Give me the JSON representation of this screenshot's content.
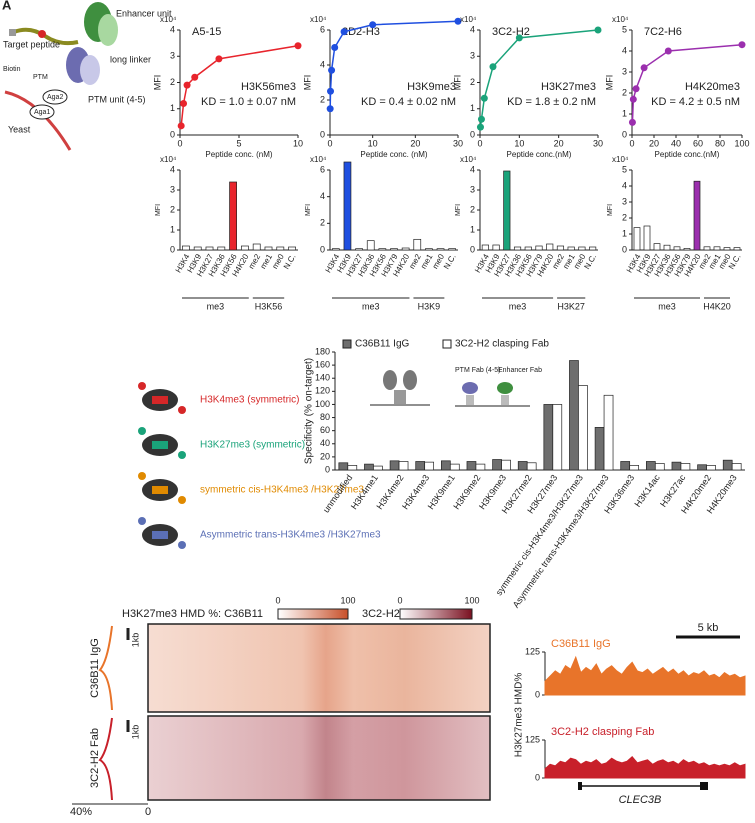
{
  "schematic": {
    "panel_label": "A",
    "target_peptide": "Target peptide",
    "biotin": "Biotin",
    "ptm": "PTM",
    "aga2": "Aga2",
    "aga1": "Aga1",
    "yeast": "Yeast",
    "enhancer": "Enhancer unit",
    "linker": "long linker",
    "ptm_unit": "PTM unit (4-5)",
    "inset_ptm": "PTM Fab (4-5)",
    "inset_enh": "Enhancer Fab"
  },
  "nucleosome_legend": [
    {
      "label": "H3K4me3 (symmetric)",
      "color": "#d62728"
    },
    {
      "label": "H3K27me3 (symmetric)",
      "color": "#1aa37a"
    },
    {
      "label": "symmetric cis-H3K4me3 /H3K27me3",
      "color": "#e08a00"
    },
    {
      "label": "Asymmetric trans-H3K4me3 /H3K27me3",
      "color": "#5b6fb5"
    }
  ],
  "chart_data": [
    {
      "type": "scatter",
      "title": "A5-15",
      "annotation": "H3K56me3",
      "kd": "KD = 1.0 ± 0.07 nM",
      "xlabel": "Peptide conc. (nM)",
      "ylabel": "MFI",
      "multiplier": "x10⁴",
      "color": "#e8242c",
      "x": [
        0.1,
        0.3,
        0.6,
        1.25,
        3.3,
        10
      ],
      "values": [
        0.35,
        1.2,
        1.9,
        2.2,
        2.9,
        3.4
      ],
      "xlim": [
        0,
        10
      ],
      "xticks": [
        0,
        5,
        10
      ],
      "ylim": [
        0,
        4
      ],
      "yticks": [
        0,
        1,
        2,
        3,
        4
      ]
    },
    {
      "type": "scatter",
      "title": "2D2-H3",
      "annotation": "H3K9me3",
      "kd": "KD = 0.4 ± 0.02 nM",
      "xlabel": "Peptide conc. (nM)",
      "ylabel": "MFI",
      "multiplier": "x10⁴",
      "color": "#1f4fe0",
      "x": [
        0.04,
        0.12,
        0.37,
        1.1,
        3.3,
        10,
        30
      ],
      "values": [
        1.5,
        2.5,
        3.7,
        5,
        5.9,
        6.3,
        6.5
      ],
      "xlim": [
        0,
        30
      ],
      "xticks": [
        0,
        10,
        20,
        30
      ],
      "ylim": [
        0,
        6
      ],
      "yticks": [
        0,
        2,
        4,
        6
      ]
    },
    {
      "type": "scatter",
      "title": "3C2-H2",
      "annotation": "H3K27me3",
      "kd": "KD = 1.8 ± 0.2 nM",
      "xlabel": "Peptide conc.(nM)",
      "ylabel": "MFI",
      "multiplier": "x10⁴",
      "color": "#1aa37a",
      "x": [
        0.12,
        0.37,
        1.1,
        3.3,
        10,
        30
      ],
      "values": [
        0.3,
        0.6,
        1.4,
        2.6,
        3.7,
        4.0
      ],
      "xlim": [
        0,
        30
      ],
      "xticks": [
        0,
        10,
        20,
        30
      ],
      "ylim": [
        0,
        4
      ],
      "yticks": [
        0,
        1,
        2,
        3,
        4
      ]
    },
    {
      "type": "scatter",
      "title": "7C2-H6",
      "annotation": "H4K20me3",
      "kd": "KD = 4.2 ± 0.5 nM",
      "xlabel": "Peptide conc.(nM)",
      "ylabel": "MFI",
      "multiplier": "x10⁴",
      "color": "#9b2fae",
      "x": [
        0.4,
        1.2,
        3.7,
        11,
        33,
        100
      ],
      "values": [
        0.6,
        1.7,
        2.2,
        3.2,
        4.0,
        4.3
      ],
      "xlim": [
        0,
        100
      ],
      "xticks": [
        0,
        20,
        40,
        60,
        80,
        100
      ],
      "ylim": [
        0,
        5
      ],
      "yticks": [
        0,
        1,
        2,
        3,
        4,
        5
      ]
    },
    {
      "type": "bar",
      "ylabel": "MFI",
      "multiplier": "x10⁴",
      "groups": [
        "me3",
        "H3K56"
      ],
      "categories": [
        "H3K4",
        "H3K9",
        "H3K27",
        "H3K36",
        "H3K56",
        "H4K20",
        "me2",
        "me1",
        "me0",
        "N.C."
      ],
      "values": [
        0.2,
        0.15,
        0.15,
        0.15,
        3.4,
        0.2,
        0.3,
        0.15,
        0.15,
        0.15
      ],
      "colors": [
        "#fff",
        "#fff",
        "#fff",
        "#fff",
        "#e8242c",
        "#fff",
        "#fff",
        "#fff",
        "#fff",
        "#fff"
      ],
      "ylim": [
        0,
        4
      ],
      "yticks": [
        0,
        1,
        2,
        3,
        4
      ]
    },
    {
      "type": "bar",
      "ylabel": "MFI",
      "multiplier": "x10⁴",
      "groups": [
        "me3",
        "H3K9"
      ],
      "categories": [
        "H3K4",
        "H3K9",
        "H3K27",
        "H3K36",
        "H3K56",
        "H3K79",
        "H4K20",
        "me2",
        "me1",
        "me0",
        "N.C."
      ],
      "values": [
        0.1,
        6.6,
        0.1,
        0.7,
        0.1,
        0.1,
        0.15,
        0.8,
        0.1,
        0.1,
        0.1
      ],
      "colors": [
        "#fff",
        "#1f4fe0",
        "#fff",
        "#fff",
        "#fff",
        "#fff",
        "#fff",
        "#fff",
        "#fff",
        "#fff",
        "#fff"
      ],
      "ylim": [
        0,
        6
      ],
      "yticks": [
        0,
        2,
        4,
        6
      ]
    },
    {
      "type": "bar",
      "ylabel": "MFI",
      "multiplier": "x10⁴",
      "groups": [
        "me3",
        "H3K27"
      ],
      "categories": [
        "H3K4",
        "H3K9",
        "H3K27",
        "H3K36",
        "H3K56",
        "H3K79",
        "H4K20",
        "me2",
        "me1",
        "me0",
        "N.C."
      ],
      "values": [
        0.25,
        0.25,
        3.95,
        0.15,
        0.15,
        0.2,
        0.3,
        0.2,
        0.15,
        0.15,
        0.15
      ],
      "colors": [
        "#fff",
        "#fff",
        "#1aa37a",
        "#fff",
        "#fff",
        "#fff",
        "#fff",
        "#fff",
        "#fff",
        "#fff",
        "#fff"
      ],
      "ylim": [
        0,
        4
      ],
      "yticks": [
        0,
        1,
        2,
        3,
        4
      ]
    },
    {
      "type": "bar",
      "ylabel": "MFI",
      "multiplier": "x10⁴",
      "groups": [
        "me3",
        "H4K20"
      ],
      "categories": [
        "H3K4",
        "H3K9",
        "H3K27",
        "H3K36",
        "H3K56",
        "H3K79",
        "H4K20",
        "me2",
        "me1",
        "me0",
        "N.C."
      ],
      "values": [
        1.4,
        1.5,
        0.4,
        0.3,
        0.2,
        0.1,
        4.3,
        0.2,
        0.2,
        0.15,
        0.15
      ],
      "colors": [
        "#fff",
        "#fff",
        "#fff",
        "#fff",
        "#fff",
        "#fff",
        "#9b2fae",
        "#fff",
        "#fff",
        "#fff",
        "#fff"
      ],
      "ylim": [
        0,
        5
      ],
      "yticks": [
        0,
        1,
        2,
        3,
        4,
        5
      ]
    },
    {
      "type": "grouped_bar",
      "ylabel": "Specificity (% on-target)",
      "categories": [
        "unmodified",
        "H3K4me1",
        "H3K4me2",
        "H3K4me3",
        "H3K9me1",
        "H3K9me2",
        "H3K9me3",
        "H3K27me2",
        "H3K27me3",
        "symmetric cis-H3K4me3/H3K27me3",
        "Asymmetric trans-H3K4me3/H3K27me3",
        "H3K36me3",
        "H3K14ac",
        "H3K27ac",
        "H4K20me2",
        "H4K20me3"
      ],
      "series": [
        {
          "name": "C36B11 IgG",
          "color": "#6e6e6e",
          "values": [
            11,
            9,
            14,
            13,
            14,
            13,
            16,
            13,
            100,
            167,
            65,
            13,
            13,
            12,
            8,
            15
          ]
        },
        {
          "name": "3C2-H2 clasping Fab",
          "color": "#ffffff",
          "values": [
            7,
            6,
            13,
            12,
            9,
            9,
            15,
            11,
            100,
            129,
            114,
            7,
            10,
            10,
            7,
            10
          ]
        }
      ],
      "ylim": [
        0,
        180
      ],
      "yticks": [
        0,
        20,
        40,
        60,
        80,
        100,
        120,
        140,
        160,
        180
      ]
    },
    {
      "type": "area",
      "title": "C36B11 IgG",
      "ylabel": "H3K27me3 HMD%",
      "color": "#e8742a",
      "values": [
        40,
        55,
        70,
        60,
        85,
        75,
        110,
        65,
        80,
        70,
        90,
        60,
        75,
        85,
        70,
        60,
        80,
        95,
        70,
        65,
        75,
        60,
        70,
        80,
        65,
        75,
        60,
        70,
        55,
        65,
        60,
        70,
        55,
        60,
        50,
        65,
        55,
        60,
        50,
        55
      ],
      "ylim": [
        0,
        125
      ],
      "yticks": [
        0,
        125
      ]
    },
    {
      "type": "area",
      "title": "3C2-H2 clasping Fab",
      "color": "#c8202a",
      "values": [
        30,
        45,
        40,
        55,
        50,
        65,
        60,
        45,
        55,
        50,
        60,
        45,
        50,
        65,
        55,
        50,
        55,
        70,
        50,
        55,
        60,
        45,
        55,
        60,
        50,
        55,
        45,
        60,
        50,
        55,
        45,
        50,
        40,
        45,
        40,
        45,
        40,
        50,
        40,
        45
      ],
      "ylim": [
        0,
        125
      ],
      "yticks": [
        0,
        125
      ]
    }
  ],
  "heatmap": {
    "title": "H3K27me3 HMD %: C36B11",
    "label2": "3C2-H2",
    "colorbar1_ticks": [
      0,
      100
    ],
    "colorbar2_ticks": [
      0,
      100
    ],
    "rows": [
      "C36B11 IgG",
      "3C2-H2 Fab"
    ],
    "scale": "1kb",
    "profile_ticks": [
      "40%",
      "0"
    ]
  },
  "genome_track": {
    "scale": "5 kb",
    "gene": "CLEC3B"
  }
}
